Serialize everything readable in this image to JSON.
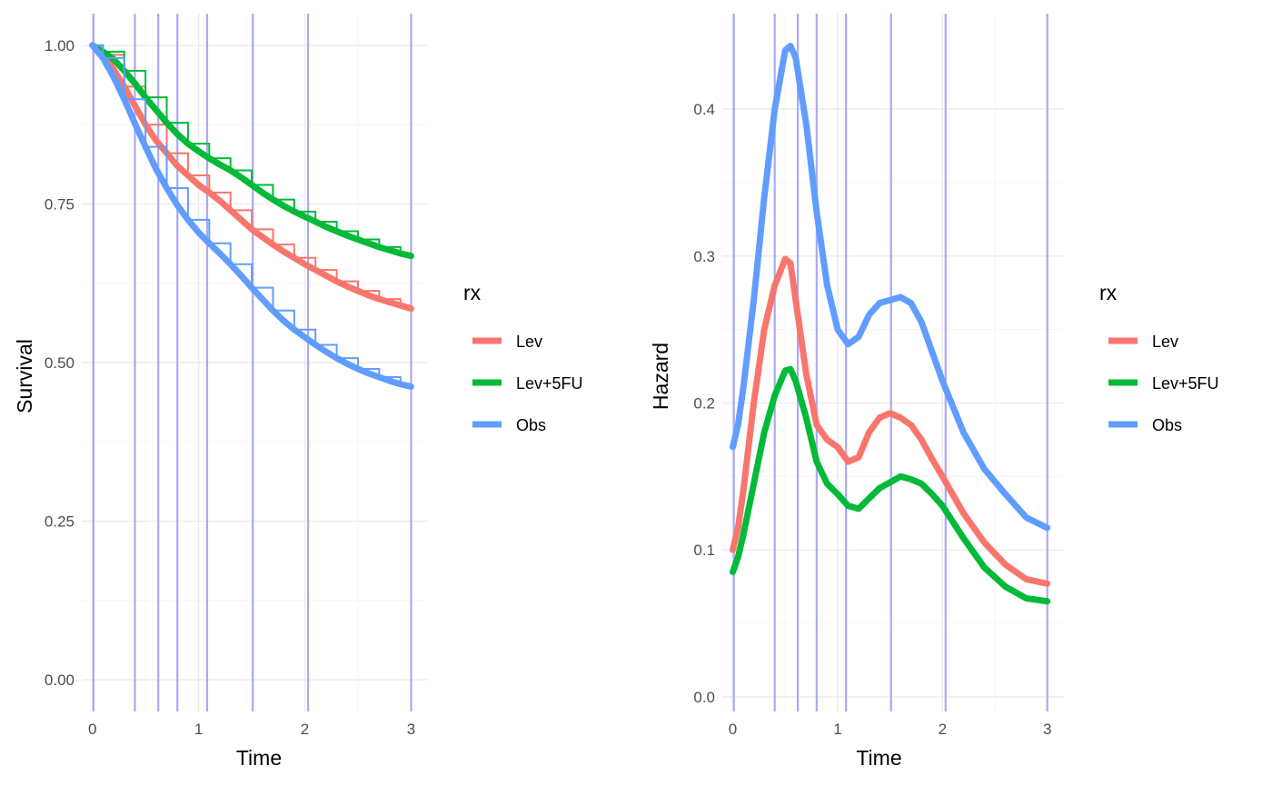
{
  "chart_data": [
    {
      "type": "line",
      "xlabel": "Time",
      "ylabel": "Survival",
      "xlim": [
        -0.1,
        3.15
      ],
      "ylim": [
        -0.05,
        1.05
      ],
      "x_ticks": [
        0,
        1,
        2,
        3
      ],
      "y_ticks": [
        0.0,
        0.25,
        0.5,
        0.75,
        1.0
      ],
      "x_tick_labels": [
        "0",
        "1",
        "2",
        "3"
      ],
      "y_tick_labels": [
        "0.00",
        "0.25",
        "0.50",
        "0.75",
        "1.00"
      ],
      "grid": true,
      "legend": {
        "title": "rx",
        "position": "right"
      },
      "vlines": {
        "color": "#a9a9f5",
        "x": [
          0.01,
          0.4,
          0.62,
          0.8,
          1.08,
          1.51,
          2.03,
          3.0
        ]
      },
      "series": [
        {
          "name": "Lev",
          "color": "#F8766D",
          "x": [
            0,
            0.1,
            0.2,
            0.3,
            0.4,
            0.5,
            0.6,
            0.7,
            0.8,
            0.9,
            1.0,
            1.1,
            1.2,
            1.3,
            1.4,
            1.5,
            1.6,
            1.7,
            1.8,
            1.9,
            2.0,
            2.1,
            2.2,
            2.3,
            2.4,
            2.5,
            2.6,
            2.7,
            2.8,
            2.9,
            3.0
          ],
          "y": [
            1.0,
            0.985,
            0.962,
            0.935,
            0.905,
            0.875,
            0.85,
            0.83,
            0.81,
            0.795,
            0.78,
            0.768,
            0.755,
            0.74,
            0.725,
            0.71,
            0.698,
            0.686,
            0.675,
            0.665,
            0.655,
            0.646,
            0.637,
            0.628,
            0.62,
            0.613,
            0.606,
            0.6,
            0.595,
            0.59,
            0.585
          ]
        },
        {
          "name": "Lev+5FU",
          "color": "#00BA38",
          "x": [
            0,
            0.1,
            0.2,
            0.3,
            0.4,
            0.5,
            0.6,
            0.7,
            0.8,
            0.9,
            1.0,
            1.1,
            1.2,
            1.3,
            1.4,
            1.5,
            1.6,
            1.7,
            1.8,
            1.9,
            2.0,
            2.1,
            2.2,
            2.3,
            2.4,
            2.5,
            2.6,
            2.7,
            2.8,
            2.9,
            3.0
          ],
          "y": [
            1.0,
            0.99,
            0.978,
            0.96,
            0.94,
            0.918,
            0.898,
            0.878,
            0.86,
            0.845,
            0.833,
            0.822,
            0.812,
            0.803,
            0.792,
            0.78,
            0.768,
            0.757,
            0.747,
            0.738,
            0.73,
            0.722,
            0.714,
            0.707,
            0.7,
            0.694,
            0.688,
            0.682,
            0.677,
            0.672,
            0.668
          ]
        },
        {
          "name": "Obs",
          "color": "#619CFF",
          "x": [
            0,
            0.1,
            0.2,
            0.3,
            0.4,
            0.5,
            0.6,
            0.7,
            0.8,
            0.9,
            1.0,
            1.1,
            1.2,
            1.3,
            1.4,
            1.5,
            1.6,
            1.7,
            1.8,
            1.9,
            2.0,
            2.1,
            2.2,
            2.3,
            2.4,
            2.5,
            2.6,
            2.7,
            2.8,
            2.9,
            3.0
          ],
          "y": [
            1.0,
            0.98,
            0.95,
            0.915,
            0.877,
            0.84,
            0.805,
            0.775,
            0.748,
            0.725,
            0.705,
            0.688,
            0.672,
            0.655,
            0.637,
            0.618,
            0.6,
            0.582,
            0.566,
            0.552,
            0.54,
            0.528,
            0.517,
            0.507,
            0.498,
            0.49,
            0.483,
            0.477,
            0.471,
            0.466,
            0.462
          ]
        }
      ]
    },
    {
      "type": "line",
      "xlabel": "Time",
      "ylabel": "Hazard",
      "xlim": [
        -0.1,
        3.15
      ],
      "ylim": [
        -0.01,
        0.465
      ],
      "x_ticks": [
        0,
        1,
        2,
        3
      ],
      "y_ticks": [
        0.0,
        0.1,
        0.2,
        0.3,
        0.4
      ],
      "x_tick_labels": [
        "0",
        "1",
        "2",
        "3"
      ],
      "y_tick_labels": [
        "0.0",
        "0.1",
        "0.2",
        "0.3",
        "0.4"
      ],
      "grid": true,
      "legend": {
        "title": "rx",
        "position": "right"
      },
      "vlines": {
        "color": "#a9a9f5",
        "x": [
          0.01,
          0.4,
          0.62,
          0.8,
          1.08,
          1.51,
          2.03,
          3.0
        ]
      },
      "series": [
        {
          "name": "Lev",
          "color": "#F8766D",
          "x": [
            0,
            0.05,
            0.1,
            0.2,
            0.3,
            0.4,
            0.5,
            0.55,
            0.6,
            0.7,
            0.8,
            0.9,
            1.0,
            1.1,
            1.2,
            1.3,
            1.4,
            1.5,
            1.6,
            1.7,
            1.8,
            1.9,
            2.0,
            2.2,
            2.4,
            2.6,
            2.8,
            3.0
          ],
          "y": [
            0.1,
            0.115,
            0.14,
            0.2,
            0.25,
            0.28,
            0.298,
            0.295,
            0.27,
            0.22,
            0.185,
            0.175,
            0.17,
            0.16,
            0.163,
            0.18,
            0.19,
            0.193,
            0.19,
            0.185,
            0.175,
            0.162,
            0.15,
            0.125,
            0.105,
            0.09,
            0.08,
            0.077
          ]
        },
        {
          "name": "Lev+5FU",
          "color": "#00BA38",
          "x": [
            0,
            0.05,
            0.1,
            0.2,
            0.3,
            0.4,
            0.5,
            0.55,
            0.6,
            0.7,
            0.8,
            0.9,
            1.0,
            1.1,
            1.2,
            1.3,
            1.4,
            1.5,
            1.6,
            1.7,
            1.8,
            1.9,
            2.0,
            2.2,
            2.4,
            2.6,
            2.8,
            3.0
          ],
          "y": [
            0.085,
            0.095,
            0.11,
            0.145,
            0.18,
            0.205,
            0.222,
            0.223,
            0.215,
            0.19,
            0.16,
            0.145,
            0.138,
            0.13,
            0.128,
            0.135,
            0.142,
            0.146,
            0.15,
            0.148,
            0.145,
            0.138,
            0.13,
            0.108,
            0.088,
            0.075,
            0.067,
            0.065
          ]
        },
        {
          "name": "Obs",
          "color": "#619CFF",
          "x": [
            0,
            0.05,
            0.1,
            0.2,
            0.3,
            0.4,
            0.5,
            0.55,
            0.6,
            0.7,
            0.8,
            0.9,
            1.0,
            1.1,
            1.2,
            1.3,
            1.4,
            1.5,
            1.6,
            1.7,
            1.8,
            1.9,
            2.0,
            2.2,
            2.4,
            2.6,
            2.8,
            3.0
          ],
          "y": [
            0.17,
            0.185,
            0.21,
            0.27,
            0.34,
            0.4,
            0.44,
            0.443,
            0.435,
            0.39,
            0.33,
            0.28,
            0.25,
            0.24,
            0.245,
            0.26,
            0.268,
            0.27,
            0.272,
            0.268,
            0.255,
            0.235,
            0.215,
            0.18,
            0.155,
            0.138,
            0.122,
            0.115
          ]
        }
      ]
    }
  ]
}
